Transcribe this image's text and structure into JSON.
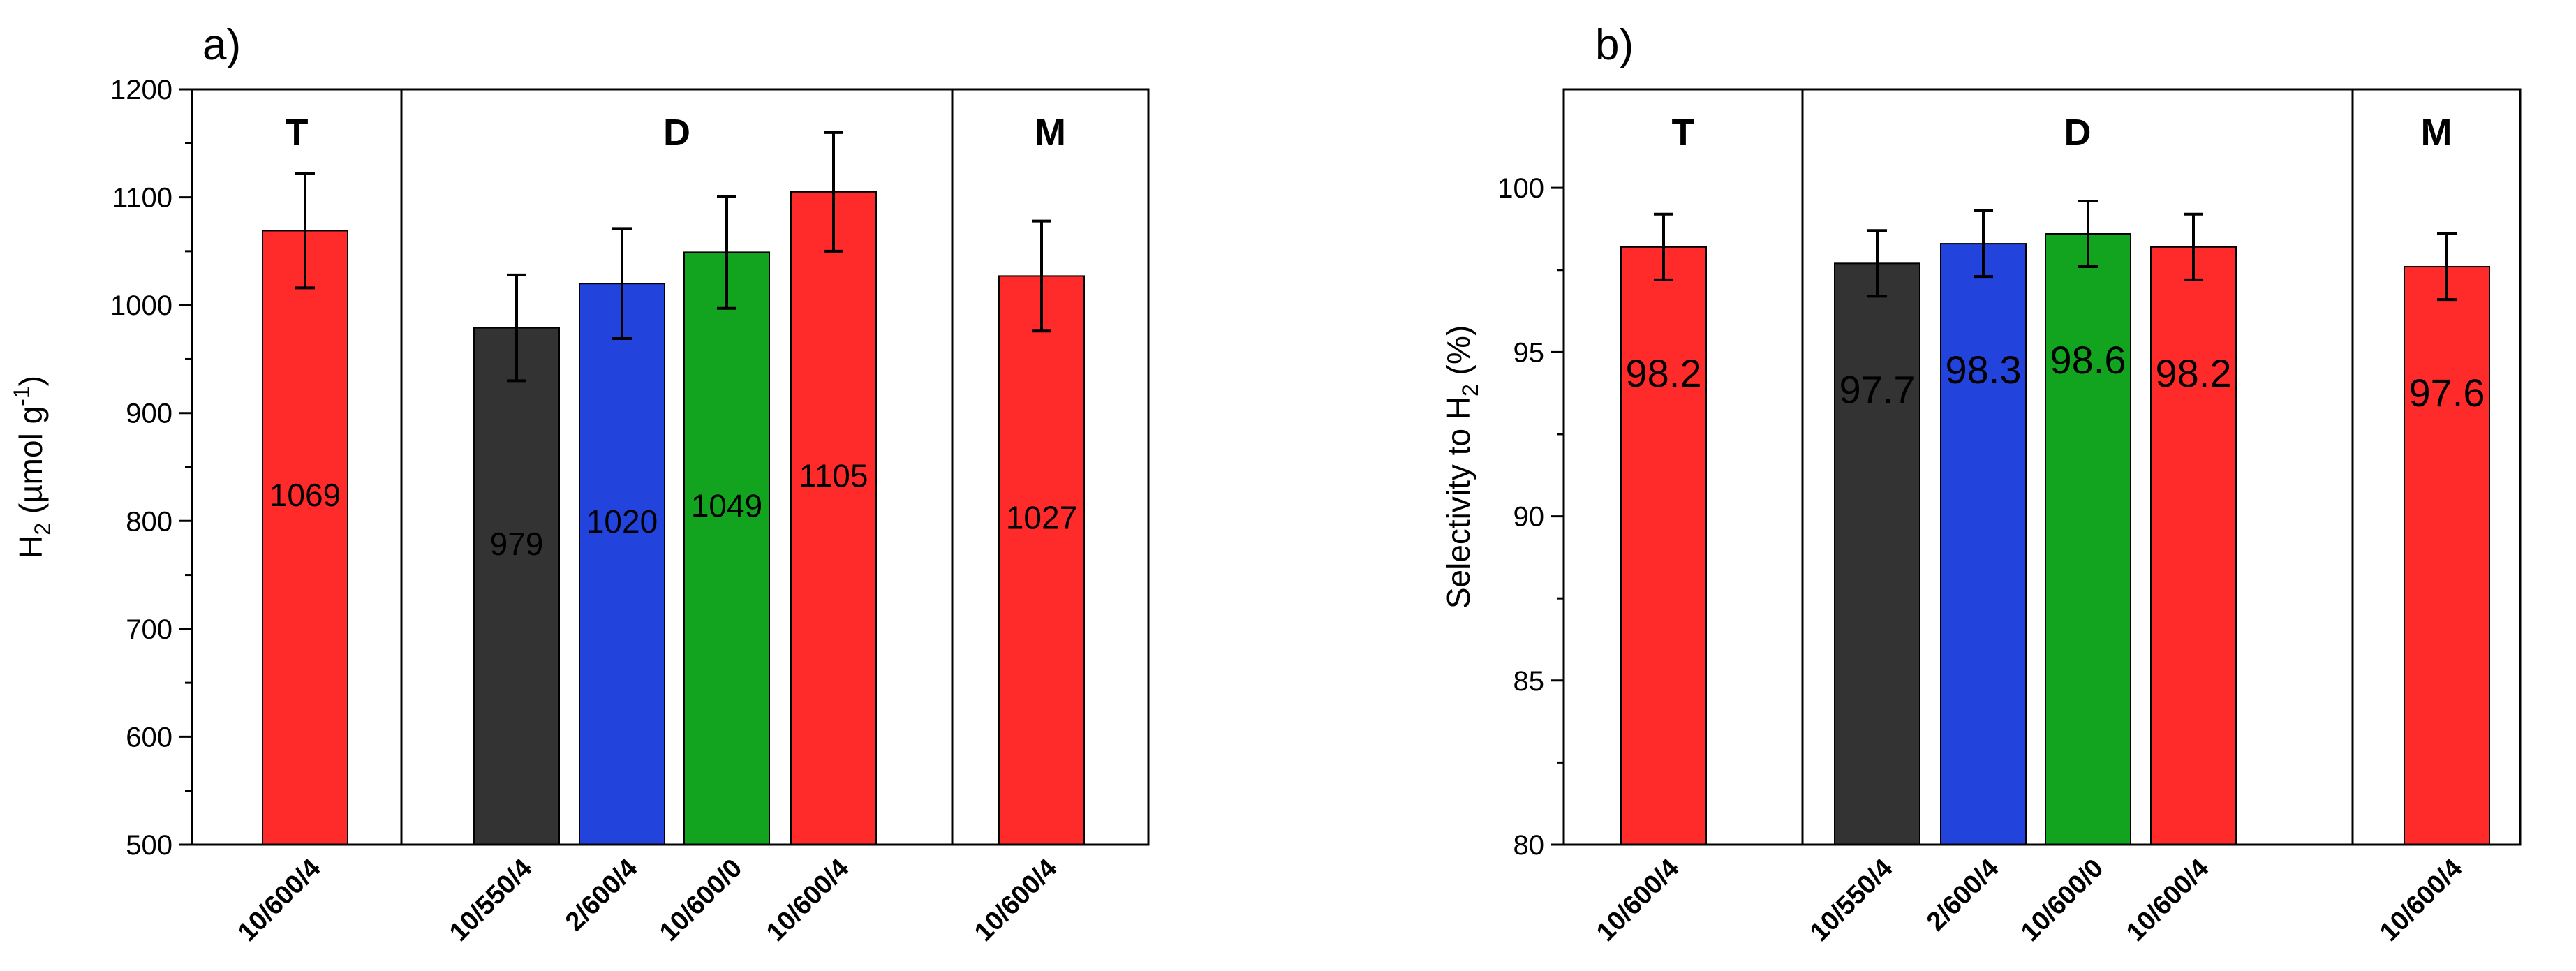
{
  "chart_data": [
    {
      "type": "bar",
      "panel_label": "a)",
      "ylabel": {
        "main": "H",
        "sub": "2",
        "rest": " (µmol g",
        "sup": "-1",
        "end": ")"
      },
      "ylim": [
        500,
        1200
      ],
      "yticks": [
        500,
        600,
        700,
        800,
        900,
        1000,
        1100,
        1200
      ],
      "groups": [
        {
          "label": "T",
          "bars": [
            {
              "category": "10/600/4",
              "value": 1069,
              "error": 53,
              "color": "#ff2a2a",
              "label": "1069"
            }
          ]
        },
        {
          "label": "D",
          "bars": [
            {
              "category": "10/550/4",
              "value": 979,
              "error": 49,
              "color": "#333333",
              "label": "979"
            },
            {
              "category": "2/600/4",
              "value": 1020,
              "error": 51,
              "color": "#2244dd",
              "label": "1020"
            },
            {
              "category": "10/600/0",
              "value": 1049,
              "error": 52,
              "color": "#12a41e",
              "label": "1049"
            },
            {
              "category": "10/600/4",
              "value": 1105,
              "error": 55,
              "color": "#ff2a2a",
              "label": "1105"
            }
          ]
        },
        {
          "label": "M",
          "bars": [
            {
              "category": "10/600/4",
              "value": 1027,
              "error": 51,
              "color": "#ff2a2a",
              "label": "1027"
            }
          ]
        }
      ]
    },
    {
      "type": "bar",
      "panel_label": "b)",
      "ylabel": {
        "main": "Selectivity to H",
        "sub": "2",
        "rest": " (%)",
        "sup": "",
        "end": ""
      },
      "ylim": [
        80,
        103
      ],
      "yticks": [
        80,
        85,
        90,
        95,
        100
      ],
      "groups": [
        {
          "label": "T",
          "bars": [
            {
              "category": "10/600/4",
              "value": 98.2,
              "error": 1.0,
              "color": "#ff2a2a",
              "label": "98.2"
            }
          ]
        },
        {
          "label": "D",
          "bars": [
            {
              "category": "10/550/4",
              "value": 97.7,
              "error": 1.0,
              "color": "#333333",
              "label": "97.7"
            },
            {
              "category": "2/600/4",
              "value": 98.3,
              "error": 1.0,
              "color": "#2244dd",
              "label": "98.3"
            },
            {
              "category": "10/600/0",
              "value": 98.6,
              "error": 1.0,
              "color": "#12a41e",
              "label": "98.6"
            },
            {
              "category": "10/600/4",
              "value": 98.2,
              "error": 1.0,
              "color": "#ff2a2a",
              "label": "98.2"
            }
          ]
        },
        {
          "label": "M",
          "bars": [
            {
              "category": "10/600/4",
              "value": 97.6,
              "error": 1.0,
              "color": "#ff2a2a",
              "label": "97.6"
            }
          ]
        }
      ]
    }
  ]
}
